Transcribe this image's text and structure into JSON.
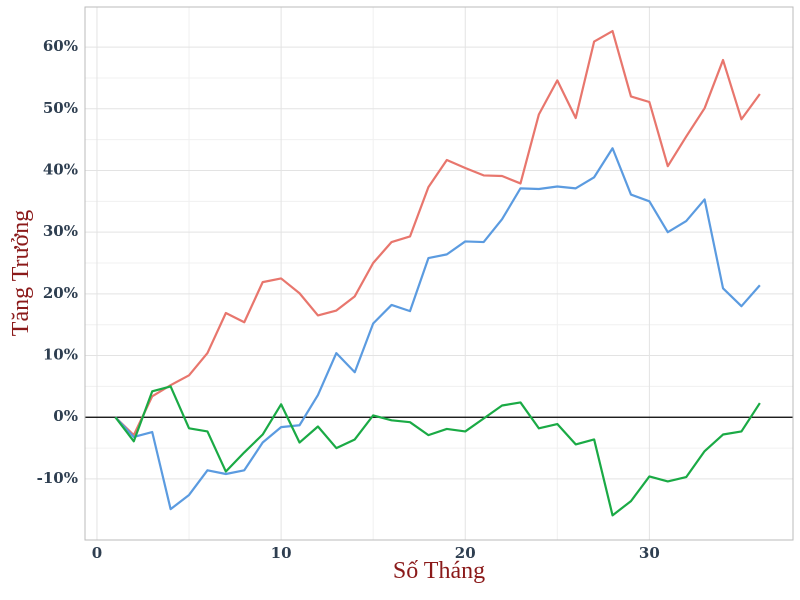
{
  "chart_data": {
    "type": "line",
    "x_label": "Số Tháng",
    "y_label": "Tăng Trưởng",
    "x": [
      1,
      2,
      3,
      4,
      5,
      6,
      7,
      8,
      9,
      10,
      11,
      12,
      13,
      14,
      15,
      16,
      17,
      18,
      19,
      20,
      21,
      22,
      23,
      24,
      25,
      26,
      27,
      28,
      29,
      30,
      31,
      32,
      33,
      34,
      35,
      36
    ],
    "series": [
      {
        "color": "#e8766d",
        "values": [
          0,
          -2.9,
          3.4,
          5.2,
          6.8,
          10.4,
          16.9,
          15.4,
          21.9,
          22.5,
          20.1,
          16.5,
          17.3,
          19.6,
          25.0,
          28.4,
          29.3,
          37.3,
          41.7,
          40.4,
          39.2,
          39.1,
          37.9,
          49.1,
          54.6,
          48.5,
          60.9,
          62.6,
          52.0,
          51.1,
          40.7,
          45.5,
          50.1,
          57.9,
          48.3,
          52.4
        ]
      },
      {
        "color": "#5b9be0",
        "values": [
          0,
          -3.2,
          -2.4,
          -14.9,
          -12.6,
          -8.6,
          -9.2,
          -8.6,
          -4.1,
          -1.6,
          -1.3,
          3.6,
          10.4,
          7.3,
          15.2,
          18.2,
          17.2,
          25.8,
          26.4,
          28.5,
          28.4,
          32.1,
          37.1,
          37.0,
          37.4,
          37.1,
          38.9,
          43.6,
          36.1,
          35.0,
          30.0,
          31.8,
          35.3,
          20.9,
          18.0,
          21.4
        ]
      },
      {
        "color": "#1aaa45",
        "values": [
          0,
          -3.9,
          4.2,
          5.0,
          -1.8,
          -2.3,
          -8.8,
          -5.7,
          -2.8,
          2.1,
          -4.1,
          -1.5,
          -5.0,
          -3.6,
          0.3,
          -0.5,
          -0.8,
          -2.9,
          -1.9,
          -2.3,
          -0.2,
          1.9,
          2.4,
          -1.8,
          -1.1,
          -4.4,
          -3.6,
          -15.9,
          -13.6,
          -9.6,
          -10.4,
          -9.7,
          -5.5,
          -2.8,
          -2.3,
          2.3
        ]
      }
    ],
    "xlim": [
      -0.65,
      37.8
    ],
    "xticks": [
      0,
      10,
      20,
      30
    ],
    "ylim": [
      -19.9,
      66.5
    ],
    "yticks": [
      {
        "value": -10,
        "label": "-10%"
      },
      {
        "value": 0,
        "label": "0%"
      },
      {
        "value": 10,
        "label": "10%"
      },
      {
        "value": 20,
        "label": "20%"
      },
      {
        "value": 30,
        "label": "30%"
      },
      {
        "value": 40,
        "label": "40%"
      },
      {
        "value": 50,
        "label": "50%"
      },
      {
        "value": 60,
        "label": "60%"
      }
    ],
    "grid": true
  }
}
